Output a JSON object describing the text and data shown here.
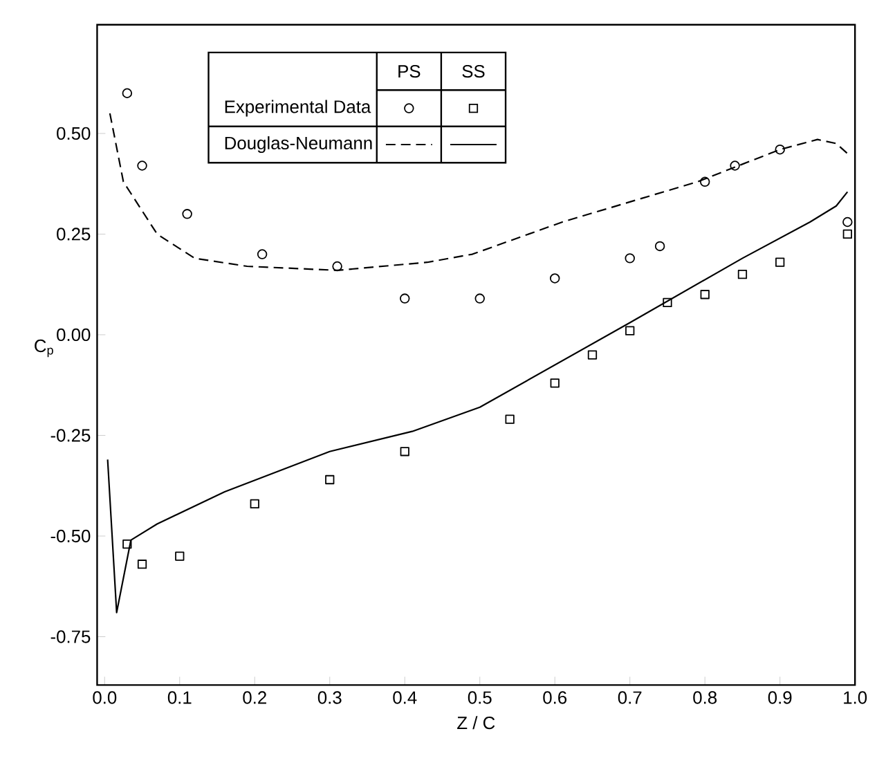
{
  "chart_data": {
    "type": "scatter",
    "xlabel": "Z / C",
    "ylabel": "C$_{p}$",
    "xlim": [
      -0.01,
      1.0
    ],
    "ylim": [
      -0.87,
      0.77
    ],
    "xticks": [
      {
        "value": 0,
        "label": "0.0"
      },
      {
        "value": 0.1,
        "label": "0.1"
      },
      {
        "value": 0.2,
        "label": "0.2"
      },
      {
        "value": 0.3,
        "label": "0.3"
      },
      {
        "value": 0.4,
        "label": "0.4"
      },
      {
        "value": 0.5,
        "label": "0.5"
      },
      {
        "value": 0.6,
        "label": "0.6"
      },
      {
        "value": 0.7,
        "label": "0.7"
      },
      {
        "value": 0.8,
        "label": "0.8"
      },
      {
        "value": 0.9,
        "label": "0.9"
      },
      {
        "value": 1.0,
        "label": "1.0"
      }
    ],
    "yticks": [
      {
        "value": -0.75,
        "label": "-0.75"
      },
      {
        "value": -0.5,
        "label": "-0.50"
      },
      {
        "value": -0.25,
        "label": "-0.25"
      },
      {
        "value": 0,
        "label": "0.00"
      },
      {
        "value": 0.25,
        "label": "0.25"
      },
      {
        "value": 0.5,
        "label": "0.50"
      }
    ],
    "legend": "top",
    "annotations": [
      "PS",
      "SS"
    ],
    "series": [
      {
        "name": "Experimental Data",
        "marker": "circle",
        "color": "#000000",
        "x": [
          0.03,
          0.05,
          0.11,
          0.21,
          0.31,
          0.4,
          0.5,
          0.6,
          0.7,
          0.74,
          0.8,
          0.84,
          0.9,
          0.99
        ],
        "values": [
          0.6,
          0.42,
          0.3,
          0.2,
          0.17,
          0.09,
          0.09,
          0.14,
          0.19,
          0.22,
          0.38,
          0.42,
          0.46,
          0.28
        ]
      },
      {
        "marker": "square",
        "color": "#000000",
        "x": [
          0.03,
          0.05,
          0.1,
          0.2,
          0.3,
          0.4,
          0.54,
          0.6,
          0.65,
          0.7,
          0.75,
          0.8,
          0.85,
          0.9,
          0.99
        ],
        "values": [
          -0.52,
          -0.57,
          -0.55,
          -0.42,
          -0.36,
          -0.29,
          -0.21,
          -0.12,
          -0.05,
          0.01,
          0.08,
          0.1,
          0.15,
          0.18,
          0.25
        ]
      },
      {
        "name": "Douglas-Neumann",
        "type": "line",
        "line_style": "dashed",
        "color": "#000000",
        "x": [
          0.007,
          0.025,
          0.07,
          0.12,
          0.19,
          0.31,
          0.43,
          0.49,
          0.61,
          0.79,
          0.9,
          0.95,
          0.975,
          0.99
        ],
        "values": [
          0.55,
          0.38,
          0.25,
          0.19,
          0.17,
          0.16,
          0.18,
          0.2,
          0.28,
          0.38,
          0.46,
          0.485,
          0.475,
          0.45
        ]
      },
      {
        "type": "line",
        "line_style": "solid",
        "color": "#000000",
        "x": [
          0.004,
          0.016,
          0.035,
          0.07,
          0.16,
          0.3,
          0.41,
          0.5,
          0.7,
          0.85,
          0.94,
          0.975,
          0.99
        ],
        "values": [
          -0.31,
          -0.69,
          -0.51,
          -0.47,
          -0.39,
          -0.29,
          -0.24,
          -0.18,
          0.03,
          0.19,
          0.28,
          0.32,
          0.355
        ]
      }
    ]
  }
}
